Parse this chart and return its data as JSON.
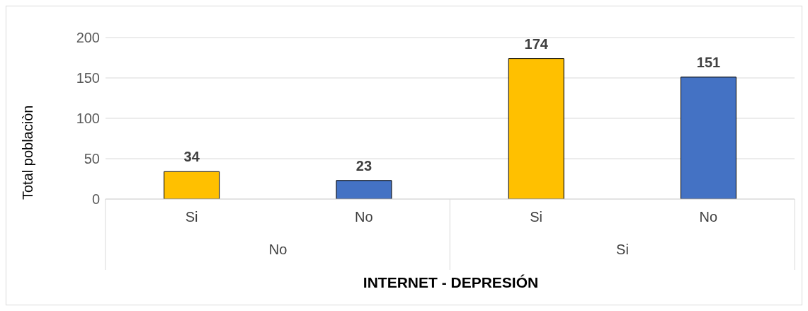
{
  "chart_data": {
    "type": "bar",
    "xlabel": "INTERNET - DEPRESIÓN",
    "ylabel": "Total poblaciòn",
    "categories": [
      "Si",
      "No",
      "Si",
      "No"
    ],
    "values": [
      34,
      23,
      174,
      151
    ],
    "colors": [
      "#ffc000",
      "#4472c4",
      "#ffc000",
      "#4472c4"
    ],
    "annotations": [
      "No",
      "Si"
    ],
    "data_labels": true,
    "ylim": [
      0,
      200
    ],
    "yticks": [
      0,
      50,
      100,
      150,
      200
    ],
    "grid": "y"
  }
}
